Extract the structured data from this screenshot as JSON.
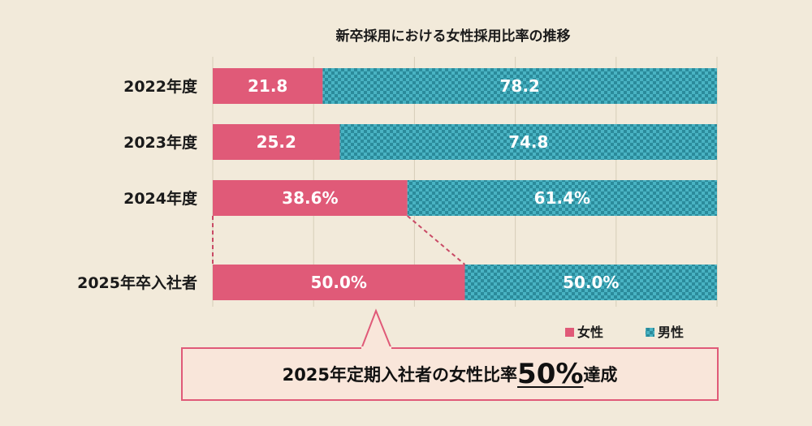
{
  "chart_data": {
    "type": "bar",
    "stacked": true,
    "orientation": "horizontal",
    "title": "新卒採用における女性採用比率の推移",
    "categories": [
      "2022年度",
      "2023年度",
      "2024年度",
      "2025年卒入社者"
    ],
    "series": [
      {
        "name": "女性",
        "values": [
          21.8,
          25.2,
          38.6,
          50.0
        ],
        "labels": [
          "21.8",
          "25.2",
          "38.6%",
          "50.0%"
        ],
        "color": "#e05a78"
      },
      {
        "name": "男性",
        "values": [
          78.2,
          74.8,
          61.4,
          50.0
        ],
        "labels": [
          "78.2",
          "74.8",
          "61.4%",
          "50.0%"
        ],
        "color": "#49b3c3",
        "pattern": "checker",
        "pattern_color": "#2b8b9b"
      }
    ],
    "xlim": [
      0,
      100
    ],
    "grid": true,
    "grid_step": 20,
    "legend": "bottom-right",
    "background": "#f2eada"
  },
  "callout": {
    "prefix": "2025年定期入社者の女性比率",
    "highlight": "50%",
    "suffix": "達成"
  }
}
